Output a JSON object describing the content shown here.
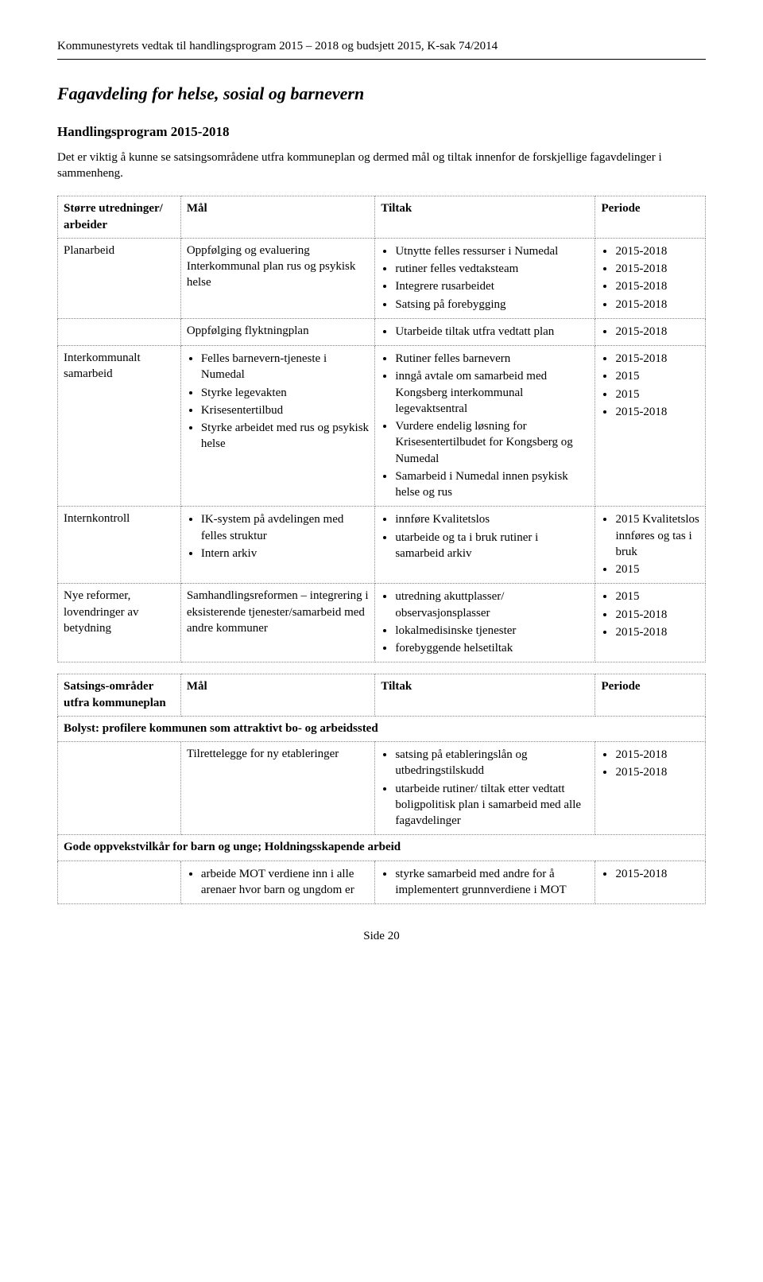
{
  "header": "Kommunestyrets vedtak til handlingsprogram 2015 – 2018 og budsjett 2015,  K-sak 74/2014",
  "title": "Fagavdeling for helse, sosial og barnevern",
  "subtitle": "Handlingsprogram 2015-2018",
  "intro": "Det er viktig å kunne se satsingsområdene utfra kommuneplan og dermed mål og tiltak innenfor de forskjellige fagavdelinger i sammenheng.",
  "table1": {
    "head": {
      "c1": "Større utredninger/ arbeider",
      "c2": "Mål",
      "c3": "Tiltak",
      "c4": "Periode"
    },
    "rows": [
      {
        "c1": "Planarbeid",
        "c2_text": "Oppfølging og evaluering Interkommunal plan rus og psykisk helse",
        "c3_list": [
          "Utnytte felles ressurser i Numedal",
          "rutiner felles vedtaksteam",
          "Integrere rusarbeidet",
          "Satsing på forebygging"
        ],
        "c4_list": [
          "2015-2018",
          "2015-2018",
          "2015-2018",
          "2015-2018"
        ]
      },
      {
        "c1": "",
        "c2_text": "Oppfølging flyktningplan",
        "c3_list": [
          "Utarbeide tiltak utfra vedtatt plan"
        ],
        "c4_list": [
          "2015-2018"
        ]
      },
      {
        "c1": "Interkommunalt samarbeid",
        "c2_list": [
          "Felles barnevern-tjeneste i Numedal",
          "Styrke legevakten",
          "Krisesentertilbud",
          "Styrke arbeidet med rus og psykisk helse"
        ],
        "c3_list": [
          "Rutiner felles barnevern",
          "inngå avtale om samarbeid med Kongsberg interkommunal legevaktsentral",
          "Vurdere endelig løsning for Krisesentertilbudet for Kongsberg og Numedal",
          "Samarbeid i Numedal innen psykisk helse og rus"
        ],
        "c4_list": [
          "2015-2018",
          "2015",
          "2015",
          "2015-2018"
        ]
      },
      {
        "c1": "Internkontroll",
        "c2_list": [
          "IK-system på avdelingen med felles struktur",
          "Intern arkiv"
        ],
        "c3_list": [
          "innføre Kvalitetslos",
          "utarbeide og ta i bruk rutiner i samarbeid arkiv"
        ],
        "c4_list": [
          "2015 Kvalitetslos innføres og tas i bruk",
          "2015"
        ]
      },
      {
        "c1": "Nye reformer, lovendringer av betydning",
        "c2_text": "Samhandlingsreformen – integrering i eksisterende tjenester/samarbeid med andre kommuner",
        "c3_list": [
          "utredning akuttplasser/ observasjonsplasser",
          "lokalmedisinske tjenester",
          "forebyggende helsetiltak"
        ],
        "c4_list": [
          "2015",
          "2015-2018",
          "2015-2018"
        ]
      }
    ]
  },
  "table2": {
    "head": {
      "c1": "Satsings-områder utfra kommuneplan",
      "c2": "Mål",
      "c3": "Tiltak",
      "c4": "Periode"
    },
    "span1": "Bolyst: profilere kommunen som attraktivt bo- og arbeidssted",
    "rows1": [
      {
        "c1": "",
        "c2_text": "Tilrettelegge for ny etableringer",
        "c3_list": [
          "satsing på etableringslån og utbedringstilskudd",
          "utarbeide rutiner/ tiltak etter vedtatt boligpolitisk plan i samarbeid med alle fagavdelinger"
        ],
        "c4_list": [
          "2015-2018",
          "2015-2018"
        ]
      }
    ],
    "span2": "Gode oppvekstvilkår for barn og unge; Holdningsskapende arbeid",
    "rows2": [
      {
        "c1": "",
        "c2_list": [
          "arbeide MOT verdiene inn i alle arenaer hvor barn og ungdom er"
        ],
        "c3_list": [
          "styrke samarbeid med andre for å implementert grunnverdiene i MOT"
        ],
        "c4_list": [
          "2015-2018"
        ]
      }
    ]
  },
  "footer": "Side 20"
}
